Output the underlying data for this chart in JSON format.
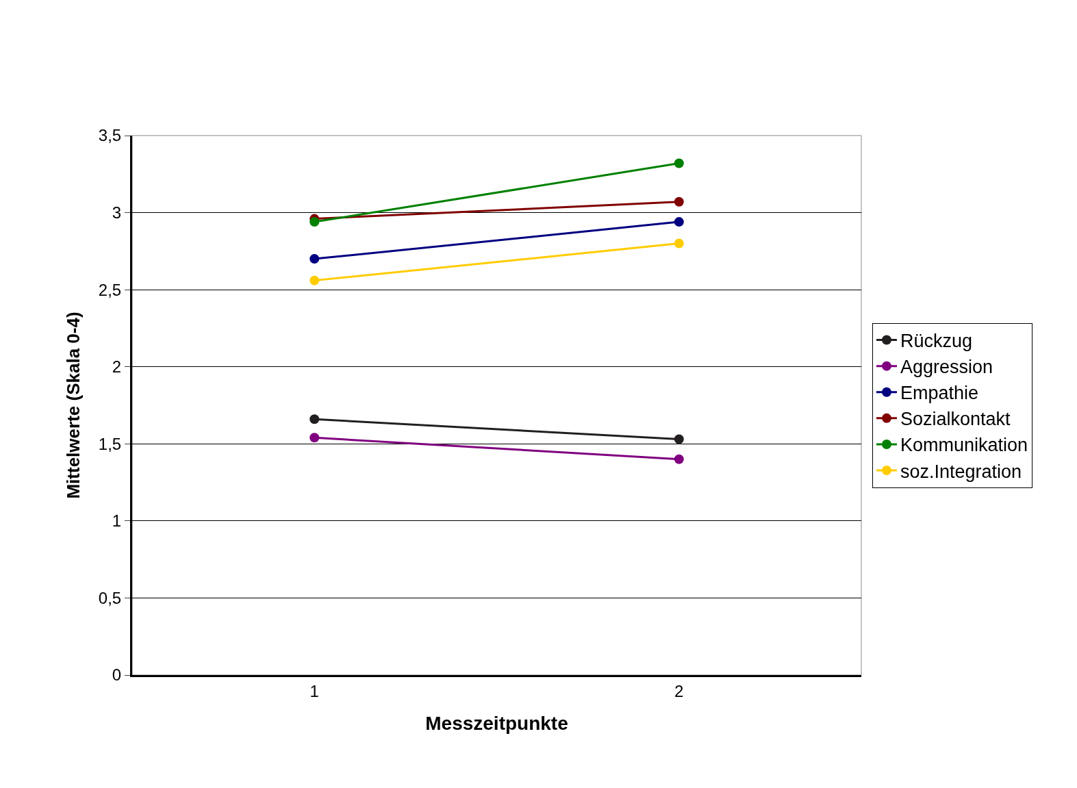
{
  "chart_data": {
    "type": "line",
    "xlabel": "Messzeitpunkte",
    "ylabel": "Mittelwerte (Skala 0-4)",
    "categories": [
      "1",
      "2"
    ],
    "series": [
      {
        "name": "Rückzug",
        "color": "#231f20",
        "values": [
          1.66,
          1.53
        ]
      },
      {
        "name": "Aggression",
        "color": "#800080",
        "values": [
          1.54,
          1.4
        ]
      },
      {
        "name": "Empathie",
        "color": "#000080",
        "values": [
          2.7,
          2.94
        ]
      },
      {
        "name": "Sozialkontakt",
        "color": "#800000",
        "values": [
          2.96,
          3.07
        ]
      },
      {
        "name": "Kommunikation",
        "color": "#008000",
        "values": [
          2.94,
          3.32
        ]
      },
      {
        "name": "soz.Integration",
        "color": "#ffcc00",
        "values": [
          2.56,
          2.8
        ]
      }
    ],
    "ylim": [
      0,
      3.5
    ],
    "yticks": [
      {
        "value": 0,
        "label": "0"
      },
      {
        "value": 0.5,
        "label": "0,5"
      },
      {
        "value": 1,
        "label": "1"
      },
      {
        "value": 1.5,
        "label": "1,5"
      },
      {
        "value": 2,
        "label": "2"
      },
      {
        "value": 2.5,
        "label": "2,5"
      },
      {
        "value": 3,
        "label": "3"
      },
      {
        "value": 3.5,
        "label": "3,5"
      }
    ],
    "grid": "y",
    "legend": "right",
    "marker": "circle",
    "line_style": "solid"
  }
}
